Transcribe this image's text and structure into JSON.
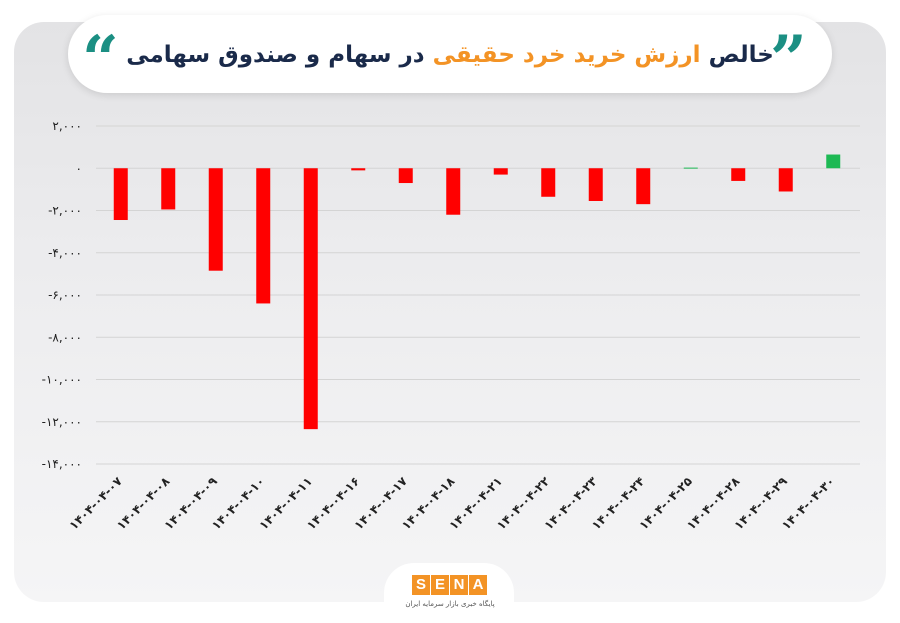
{
  "header": {
    "title_part1": "خالص",
    "title_accent": "ارزش خرید خرد حقیقی",
    "title_part2": "در سهام و صندوق سهامی",
    "quote_open": "”",
    "quote_close": "“"
  },
  "logo": {
    "letters": [
      "S",
      "E",
      "N",
      "A"
    ],
    "subtitle": "پایگاه خبری بازار سرمایه ایران"
  },
  "colors": {
    "negative": "#ff0000",
    "positive": "#1db954",
    "grid": "#d4d4d4"
  },
  "chart_data": {
    "type": "bar",
    "categories": [
      "۱۴۰۴-۰۴-۰۷",
      "۱۴۰۴-۰۴-۰۸",
      "۱۴۰۴-۰۴-۰۹",
      "۱۴۰۴-۰۴-۱۰",
      "۱۴۰۴-۰۴-۱۱",
      "۱۴۰۴-۰۴-۱۶",
      "۱۴۰۴-۰۴-۱۷",
      "۱۴۰۴-۰۴-۱۸",
      "۱۴۰۴-۰۴-۲۱",
      "۱۴۰۴-۰۴-۲۲",
      "۱۴۰۴-۰۴-۲۳",
      "۱۴۰۴-۰۴-۲۴",
      "۱۴۰۴-۰۴-۲۵",
      "۱۴۰۴-۰۴-۲۸",
      "۱۴۰۴-۰۴-۲۹",
      "۱۴۰۴-۰۴-۳۰"
    ],
    "values": [
      -2450,
      -1950,
      -4850,
      -6400,
      -12350,
      -100,
      -700,
      -2200,
      -300,
      -1350,
      -1550,
      -1700,
      30,
      -600,
      -1100,
      650
    ],
    "ylim": [
      -14000,
      2000
    ],
    "yticks": [
      2000,
      0,
      -2000,
      -4000,
      -6000,
      -8000,
      -10000,
      -12000,
      -14000
    ],
    "ytick_labels": [
      "۲,۰۰۰",
      "۰",
      "-۲,۰۰۰",
      "-۴,۰۰۰",
      "-۶,۰۰۰",
      "-۸,۰۰۰",
      "-۱۰,۰۰۰",
      "-۱۲,۰۰۰",
      "-۱۴,۰۰۰"
    ],
    "title": "خالص ارزش خرید خرد حقیقی در سهام و صندوق سهامی",
    "grid": true
  }
}
